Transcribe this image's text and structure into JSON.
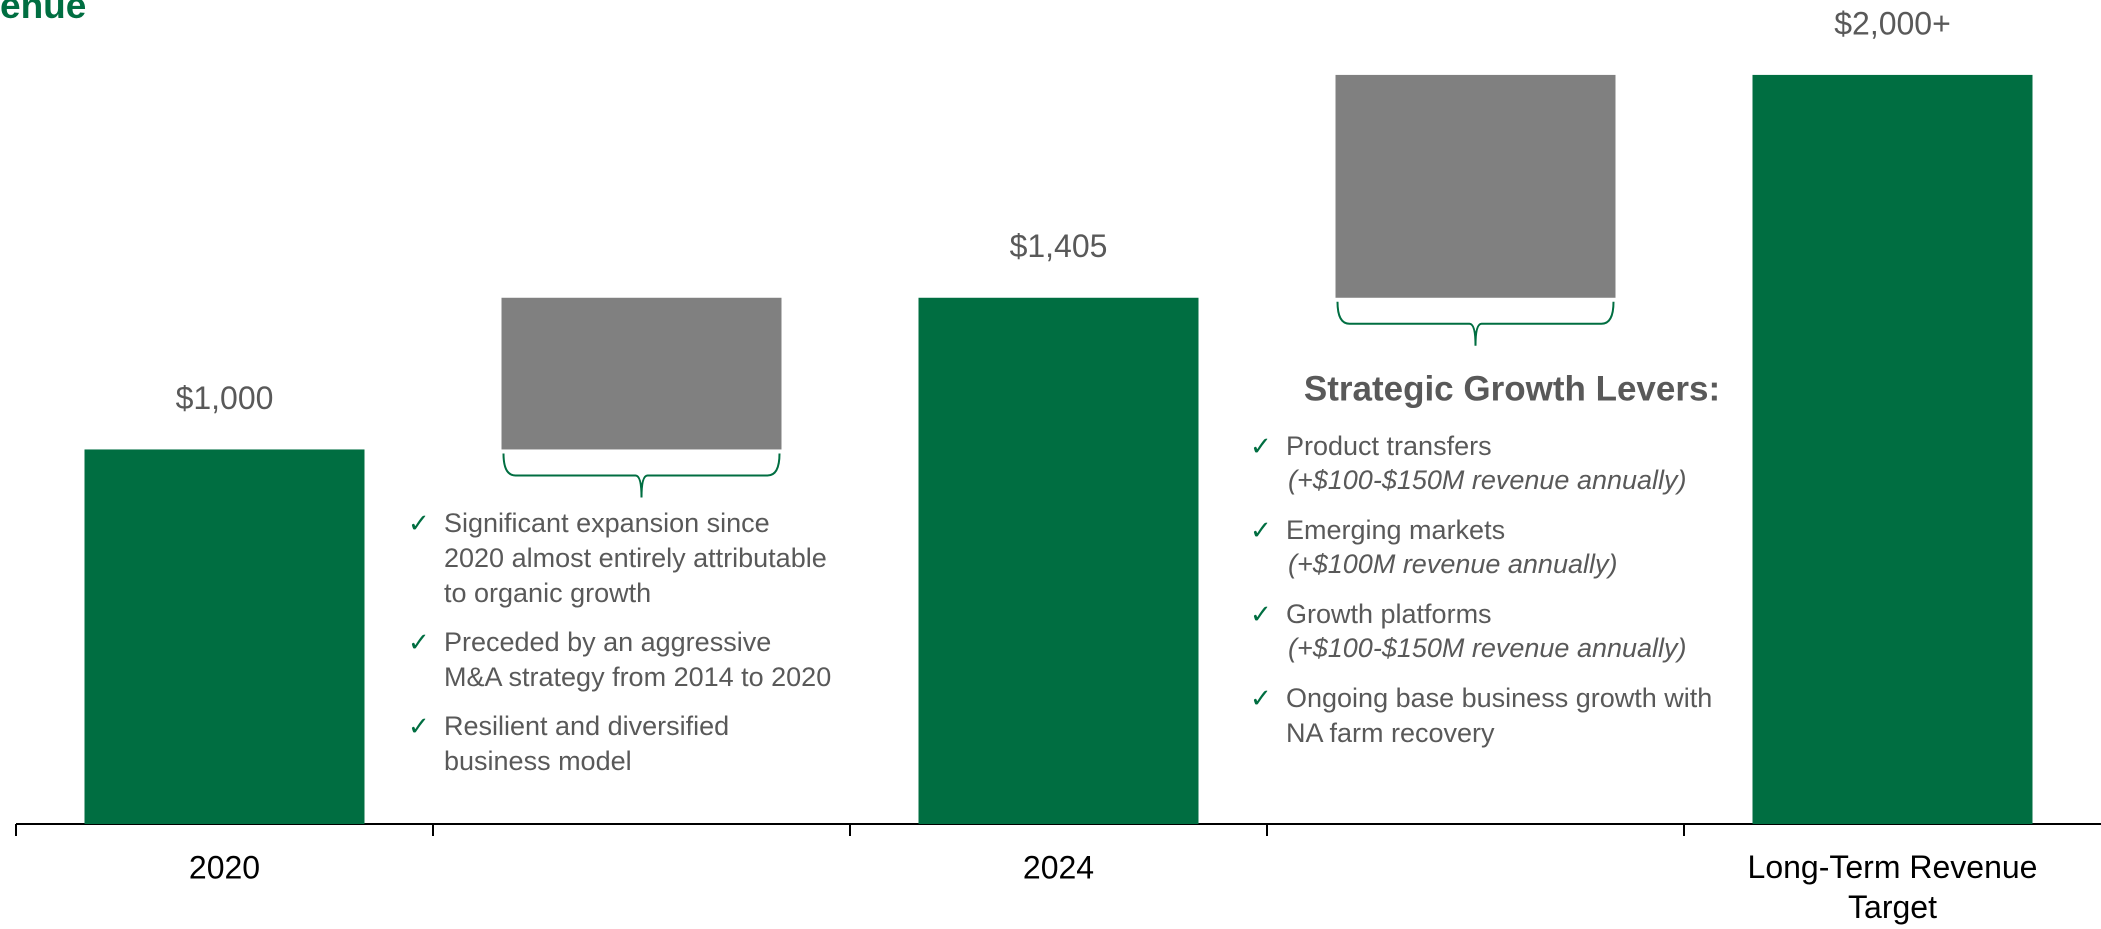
{
  "chart_data": {
    "type": "waterfall",
    "title": "enue",
    "categories": [
      "2020",
      null,
      "2024",
      null,
      "Long-Term Revenue Target"
    ],
    "values": [
      1000,
      405,
      1405,
      595,
      2000
    ],
    "value_labels": [
      "$1,000",
      null,
      "$1,405",
      null,
      "$2,000+"
    ],
    "colors": [
      "#006e41",
      "#808080",
      "#006e41",
      "#808080",
      "#006e41"
    ],
    "ylim": [
      0,
      2200
    ],
    "annotations": [
      {
        "items": [
          {
            "lines": [
              "Significant expansion since",
              "2020 almost entirely attributable",
              "to organic growth"
            ]
          },
          {
            "lines": [
              "Preceded by an aggressive",
              "M&A strategy from 2014 to 2020"
            ]
          },
          {
            "lines": [
              "Resilient and diversified",
              "business model"
            ]
          }
        ]
      },
      {
        "heading": "Strategic Growth Levers:",
        "items": [
          {
            "lines": [
              "Product transfers"
            ],
            "note": "(+$100-$150M revenue annually)"
          },
          {
            "lines": [
              "Emerging markets"
            ],
            "note": "(+$100M revenue annually)"
          },
          {
            "lines": [
              "Growth platforms"
            ],
            "note": "(+$100-$150M revenue annually)"
          },
          {
            "lines": [
              "Ongoing base business growth with",
              "NA farm recovery"
            ]
          }
        ]
      }
    ]
  }
}
